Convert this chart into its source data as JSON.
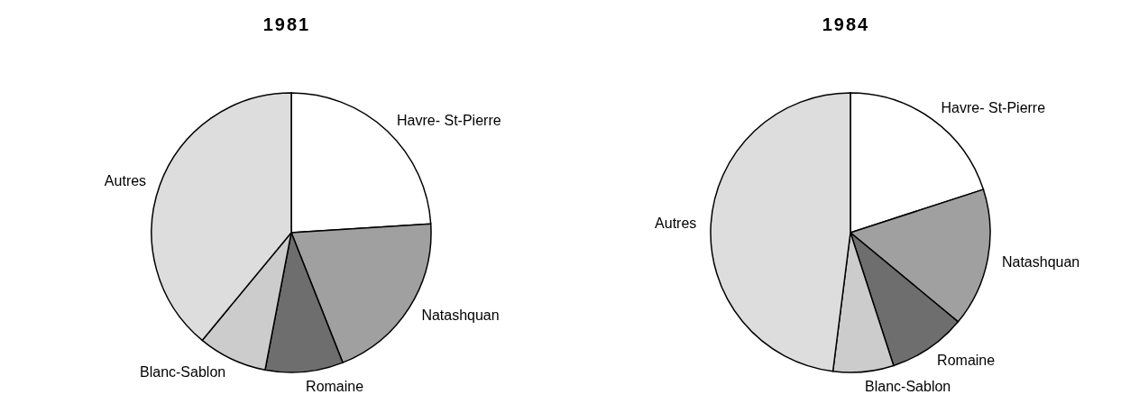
{
  "chart_data": [
    {
      "type": "pie",
      "title": "1981",
      "categories": [
        "Havre- St-Pierre",
        "Natashquan",
        "Romaine",
        "Blanc-Sablon",
        "Autres"
      ],
      "values": [
        24,
        20,
        9,
        8,
        39
      ],
      "colors": [
        "#ffffff",
        "#a0a0a0",
        "#6e6e6e",
        "#cccccc",
        "#dddddd"
      ],
      "legend": false
    },
    {
      "type": "pie",
      "title": "1984",
      "categories": [
        "Havre- St-Pierre",
        "Natashquan",
        "Romaine",
        "Blanc-Sablon",
        "Autres"
      ],
      "values": [
        20,
        16,
        9,
        7,
        48
      ],
      "colors": [
        "#ffffff",
        "#a0a0a0",
        "#6e6e6e",
        "#cccccc",
        "#dddddd"
      ],
      "legend": false
    }
  ]
}
